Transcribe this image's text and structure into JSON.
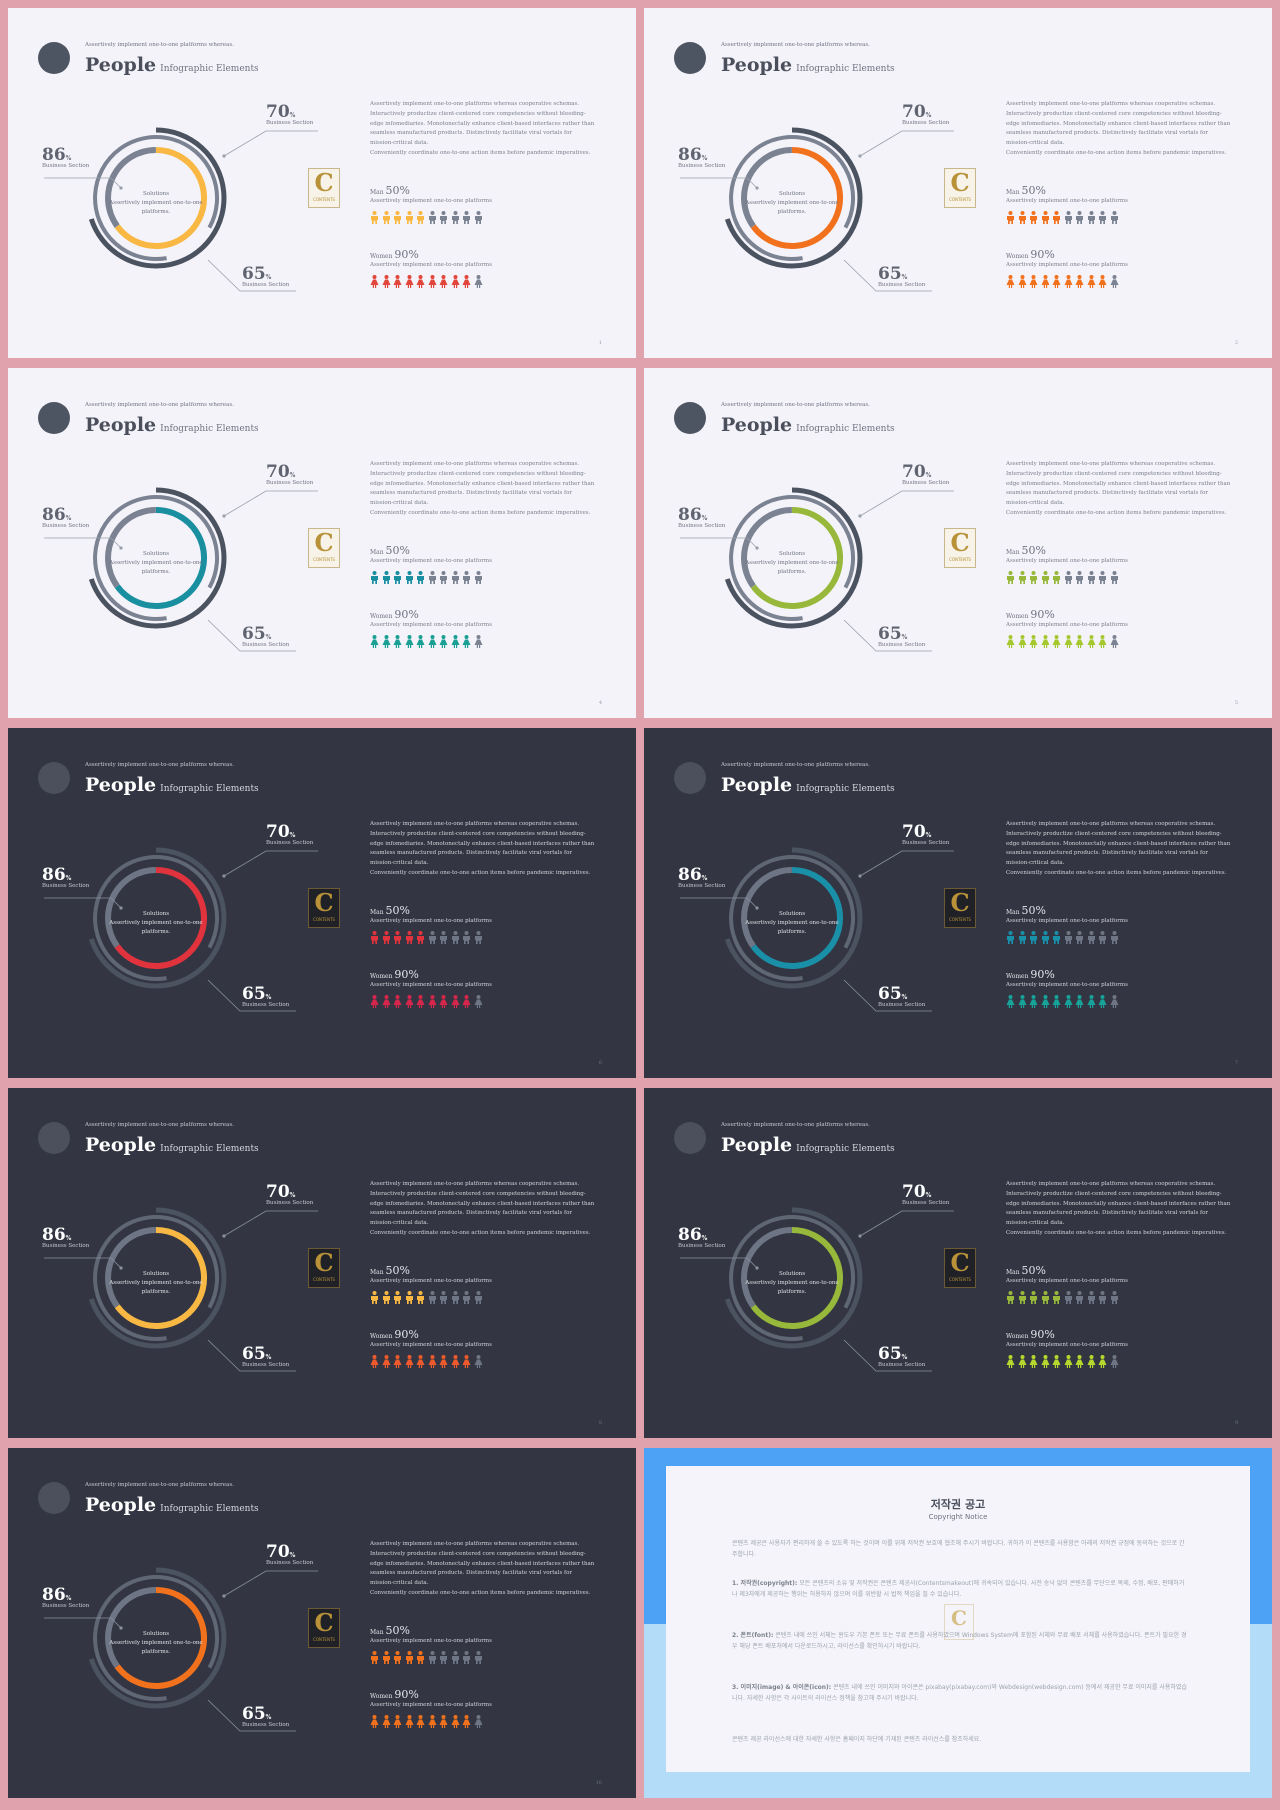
{
  "slide_common": {
    "subtitle": "Assertively implement one-to-one platforms whereas.",
    "title_big": "People",
    "title_small": "Infographic Elements",
    "stat_70": "70",
    "stat_86": "86",
    "stat_65": "65",
    "percent": "%",
    "business_section": "Business Section",
    "center_text": "Solutions\nAssertively implement one-to-one platforms.",
    "paragraph": "Assertively implement one-to-one platforms whereas cooperative schemas. Interactively productize client-centered core competencies without bleeding-edge infomediaries. Monotonectally enhance client-based interfaces rather than seamless manufactured products. Distinctively facilitate viral vortals for mission-critical data.",
    "paragraph2": "Conveniently coordinate one-to-one action items before pandemic imperatives.",
    "men_label": "Man",
    "men_value": "50%",
    "women_label": "Women",
    "women_value": "90%",
    "group_sub": "Assertively implement one-to-one platforms",
    "logo_letter": "C",
    "logo_word": "CONTENTS"
  },
  "slides": [
    {
      "theme": "light",
      "accent": "#f8b843",
      "women_color": "#e2453a",
      "page": "1"
    },
    {
      "theme": "light",
      "accent": "#f2711c",
      "women_color": "#f2711c",
      "page": "2"
    },
    {
      "theme": "light",
      "accent": "#1a8fa0",
      "women_color": "#1a9f94",
      "page": "4"
    },
    {
      "theme": "light",
      "accent": "#97b83a",
      "women_color": "#a6c82f",
      "page": "5"
    },
    {
      "theme": "dark",
      "accent": "#e0333e",
      "women_color": "#d6264c",
      "page": "6"
    },
    {
      "theme": "dark",
      "accent": "#1a8fa8",
      "women_color": "#17a29a",
      "page": "7"
    },
    {
      "theme": "dark",
      "accent": "#f8b843",
      "women_color": "#ef5a2c",
      "page": "8"
    },
    {
      "theme": "dark",
      "accent": "#97b83a",
      "women_color": "#b6d72e",
      "page": "9"
    },
    {
      "theme": "dark",
      "accent": "#f2711c",
      "women_color": "#f2711c",
      "page": "10"
    }
  ],
  "copyright": {
    "title": "저작권 공고",
    "notice": "Copyright Notice",
    "intro": "콘텐츠 제공은 사용자가 편리하게 쓸 수 있도록 하는 것이며 이를 위해 저작권 보호에 협조해 주시기 바랍니다. 귀하가 이 콘텐츠를 사용함은 아래의 저작권 규정에 동의하는 것으로 간주합니다.",
    "p1_head": "1. 저작권(copyright):",
    "p1_body": "모든 콘텐츠의 소유 및 저작권은 콘텐츠 제공사(Contentsmakeout)에 귀속되어 있습니다. 사전 승낙 없이 콘텐츠를 무단으로 복제, 수정, 배포, 판매하거나 제3자에게 제공하는 행위는 허용하지 않으며 이를 위반할 시 법적 책임을 질 수 있습니다.",
    "p2_head": "2. 폰트(font):",
    "p2_body": "콘텐츠 내에 쓰인 서체는 윈도우 기본 폰트 또는 무료 폰트를 사용하였으며 Windows System에 포함된 서체와 무료 배포 서체를 사용하였습니다. 폰트가 필요한 경우 해당 폰트 배포처에서 다운로드하시고, 라이선스를 확인하시기 바랍니다.",
    "p3_head": "3. 이미지(image) & 아이콘(icon):",
    "p3_body": "콘텐츠 내에 쓰인 이미지와 아이콘은 pixabay(pixabay.com)와 Webdesign(webdesign.com) 등에서 제공한 무료 이미지를 사용하였습니다. 자세한 사항은 각 사이트의 라이선스 정책을 참고해 주시기 바랍니다.",
    "outro": "콘텐츠 제공 라이선스에 대한 자세한 사항은 홈페이지 하단에 기재된 콘텐츠 라이선스를 참조하세요.",
    "logo_letter": "C"
  }
}
